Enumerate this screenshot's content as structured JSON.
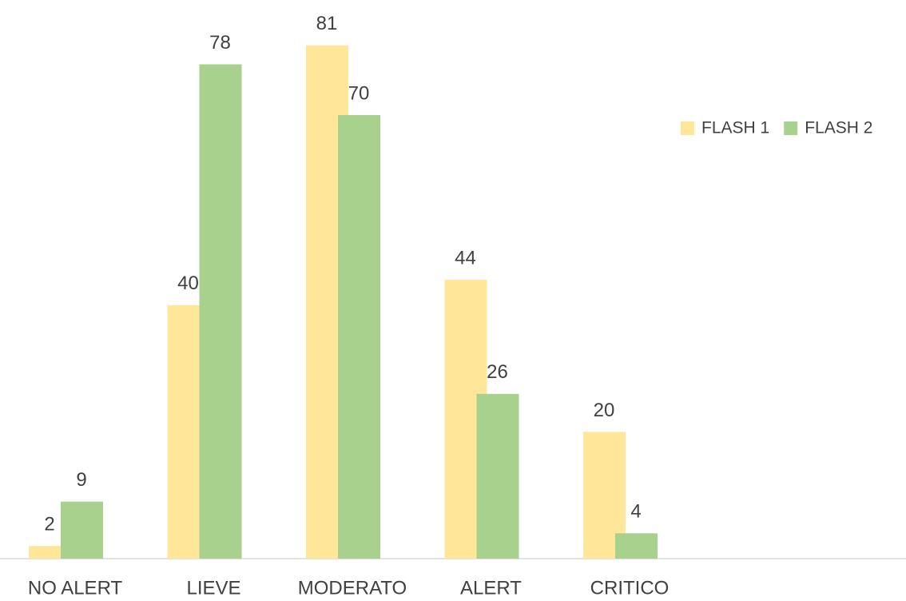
{
  "chart_data": {
    "type": "bar",
    "categories": [
      "NO ALERT",
      "LIEVE",
      "MODERATO",
      "ALERT",
      "CRITICO"
    ],
    "series": [
      {
        "name": "FLASH 1",
        "color": "#ffe699",
        "values": [
          2,
          40,
          81,
          44,
          20
        ]
      },
      {
        "name": "FLASH 2",
        "color": "#a9d18e",
        "values": [
          9,
          78,
          70,
          26,
          4
        ]
      }
    ],
    "ylim": [
      0,
      85
    ],
    "legend": "top-right"
  }
}
